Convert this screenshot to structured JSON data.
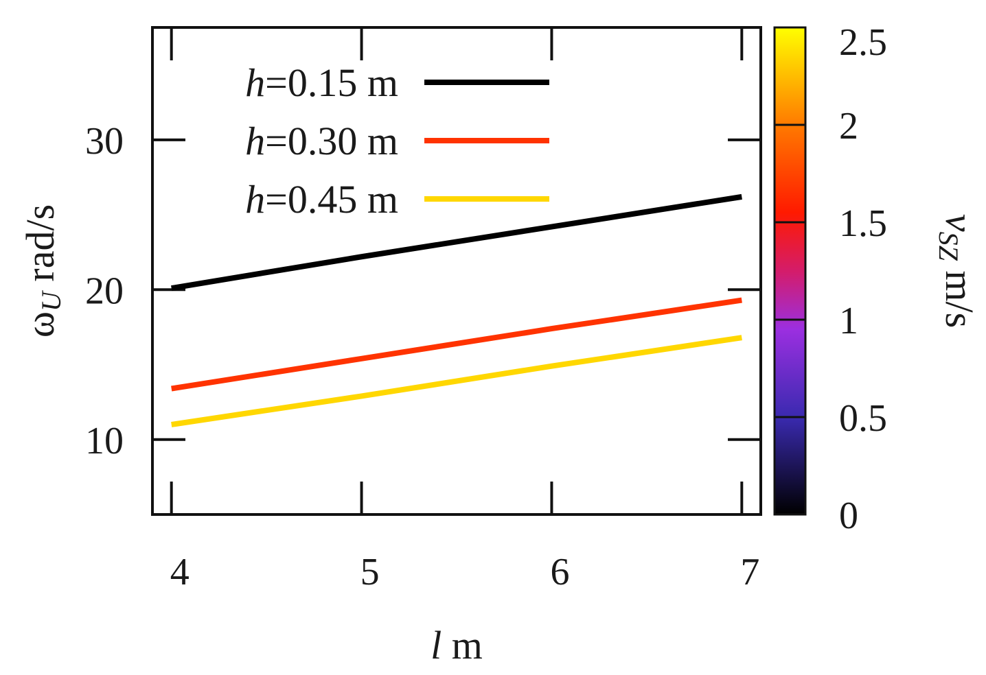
{
  "chart_data": {
    "type": "line",
    "xlabel_var": "l",
    "xlabel_unit": "m",
    "ylabel_var": "ω",
    "ylabel_sub": "U",
    "ylabel_unit": "rad/s",
    "xlim": [
      3.9,
      7.1
    ],
    "ylim": [
      5,
      37.5
    ],
    "xticks": [
      4,
      5,
      6,
      7
    ],
    "yticks": [
      10,
      20,
      30
    ],
    "grid": false,
    "legend_position": "top-left",
    "series": [
      {
        "name_var": "h",
        "name_rest": "=0.15 m",
        "color": "#000000",
        "x": [
          4,
          5,
          6,
          7
        ],
        "y": [
          20.1,
          22.2,
          24.2,
          26.2
        ]
      },
      {
        "name_var": "h",
        "name_rest": "=0.30 m",
        "color": "#ff3300",
        "x": [
          4,
          5,
          6,
          7
        ],
        "y": [
          13.4,
          15.4,
          17.4,
          19.3
        ]
      },
      {
        "name_var": "h",
        "name_rest": "=0.45 m",
        "color": "#ffd700",
        "x": [
          4,
          5,
          6,
          7
        ],
        "y": [
          11.0,
          12.9,
          14.9,
          16.8
        ]
      }
    ],
    "colorbar": {
      "label_var": "v",
      "label_sub": "SZ",
      "label_unit": "m/s",
      "range": [
        0,
        2.5
      ],
      "ticks": [
        "0",
        "0.5",
        "1",
        "1.5",
        "2",
        "2.5"
      ],
      "tick_values": [
        0,
        0.5,
        1,
        1.5,
        2,
        2.5
      ],
      "stops": [
        {
          "offset": 0,
          "color": "#000000"
        },
        {
          "offset": 0.2,
          "color": "#3a2ab0"
        },
        {
          "offset": 0.38,
          "color": "#9b2fe0"
        },
        {
          "offset": 0.5,
          "color": "#d41c6a"
        },
        {
          "offset": 0.62,
          "color": "#ff1a00"
        },
        {
          "offset": 0.8,
          "color": "#ff7a00"
        },
        {
          "offset": 1,
          "color": "#ffff00"
        }
      ]
    }
  }
}
